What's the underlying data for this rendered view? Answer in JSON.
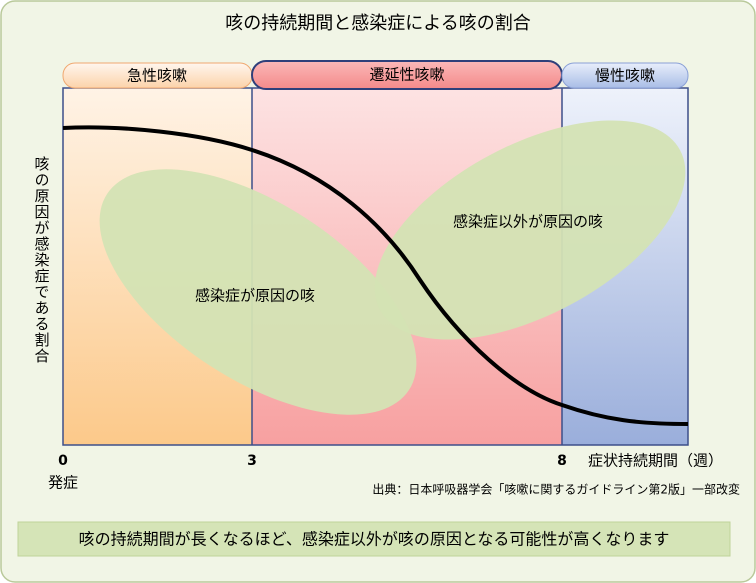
{
  "title": "咳の持続期間と感染症による咳の割合",
  "phases": [
    {
      "label": "急性咳嗽"
    },
    {
      "label": "遷延性咳嗽"
    },
    {
      "label": "慢性咳嗽"
    }
  ],
  "y_axis_label": "咳の原因が感染症である割合",
  "x_axis_label": "症状持続期間（週）",
  "x_ticks": [
    "0",
    "3",
    "8"
  ],
  "x_origin_label": "発症",
  "regions": [
    {
      "label": "感染症が原因の咳"
    },
    {
      "label": "感染症以外が原因の咳"
    }
  ],
  "source": "出典：日本呼吸器学会「咳嗽に関するガイドライン第2版」一部改変",
  "conclusion": "咳の持続期間が長くなるほど、感染症以外が咳の原因となる可能性が高くなります"
}
